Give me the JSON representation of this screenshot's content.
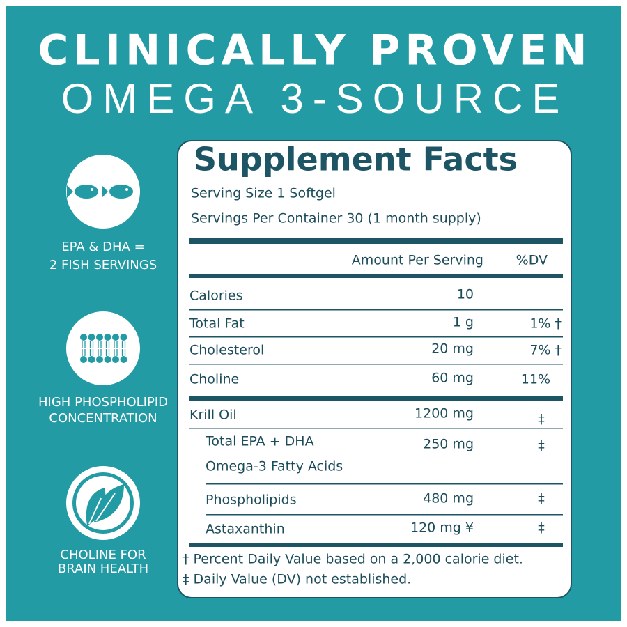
{
  "header": {
    "title": "CLINICALLY PROVEN",
    "subtitle": "OMEGA 3-SOURCE"
  },
  "features": [
    {
      "label": [
        "EPA & DHA =",
        "2 FISH SERVINGS"
      ]
    },
    {
      "label": [
        "HIGH PHOSPHOLIPID",
        "CONCENTRATION"
      ]
    },
    {
      "label": [
        "CHOLINE FOR",
        "BRAIN HEALTH"
      ]
    }
  ],
  "facts": {
    "title": "Supplement Facts",
    "serving_size": "Serving Size 1 Softgel",
    "servings_per_container": "Servings Per Container 30 (1 month supply)",
    "columns": [
      "Amount Per Serving",
      "%DV"
    ],
    "rows": [
      {
        "name": [
          "Calories"
        ],
        "amount": "10"
      },
      {
        "name": [
          "Total Fat"
        ],
        "amount": "1 g",
        "dv": "1% †"
      },
      {
        "name": [
          "Cholesterol"
        ],
        "amount": "20 mg",
        "dv": "7% †"
      },
      {
        "name": [
          "Choline"
        ],
        "amount": "60 mg",
        "dv": "11%"
      },
      {
        "name": [
          "Krill Oil"
        ],
        "amount": "1200 mg",
        "dv": "‡"
      },
      {
        "name": [
          "Total EPA + DHA",
          "Omega-3 Fatty Acids"
        ],
        "amount": "250 mg",
        "dv": "‡"
      },
      {
        "name": [
          "Phospholipids"
        ],
        "amount": "480 mg",
        "dv": "‡"
      },
      {
        "name": [
          "Astaxanthin"
        ],
        "amount": "120 mg ¥",
        "dv": "‡"
      }
    ],
    "footnotes": [
      "† Percent Daily Value based on a 2,000 calorie diet.",
      "‡ Daily Value (DV) not established."
    ]
  }
}
